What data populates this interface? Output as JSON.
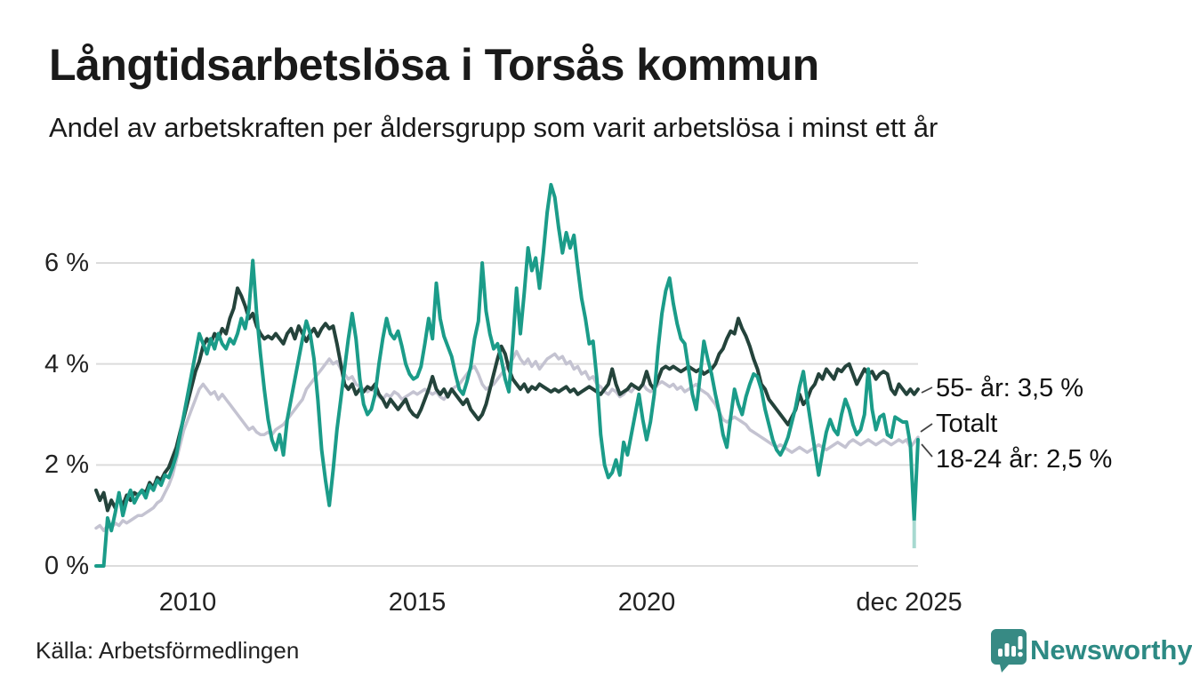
{
  "header": {
    "title": "Långtidsarbetslösa i Torsås kommun",
    "subtitle": "Andel av arbetskraften per åldersgrupp som varit arbetslösa i minst ett år"
  },
  "footer": {
    "source": "Källa: Arbetsförmedlingen",
    "brand": "Newsworthy"
  },
  "colors": {
    "teal": "#1b9c89",
    "dark_green": "#24433b",
    "gray": "#c4c3d1",
    "light_teal_preliminary": "#a7d9d0",
    "gridline": "#dcdcdc",
    "brand_teal": "#378a84"
  },
  "chart_data": {
    "type": "line",
    "title": "Långtidsarbetslösa i Torsås kommun",
    "subtitle": "Andel av arbetskraften per åldersgrupp som varit arbetslösa i minst ett år",
    "x_start": "2008-01",
    "x_end": "2025-12",
    "x_frequency": "monthly",
    "grid": "horizontal",
    "legend_position": "end-of-line-labels",
    "ylim": [
      0,
      7.8
    ],
    "y_ticks": [
      {
        "label": "0 %",
        "value": 0
      },
      {
        "label": "2 %",
        "value": 2
      },
      {
        "label": "4 %",
        "value": 4
      },
      {
        "label": "6 %",
        "value": 6
      }
    ],
    "x_ticks": [
      {
        "label": "2010",
        "month_index": 24
      },
      {
        "label": "2015",
        "month_index": 84
      },
      {
        "label": "2020",
        "month_index": 144
      },
      {
        "label": "dec 2025",
        "month_index": 215
      }
    ],
    "end_labels": [
      "55- år: 3,5 %",
      "Totalt",
      "18-24 år: 2,5 %"
    ],
    "preliminary_tip": {
      "series": "18-24 år",
      "month_index": 214,
      "from": 0.9,
      "to": 0.35,
      "color": "#a7d9d0"
    },
    "series": [
      {
        "name": "Totalt",
        "color": "#c4c3d1",
        "last_value": 2.55,
        "values": [
          0.75,
          0.8,
          0.7,
          0.8,
          0.75,
          0.85,
          0.8,
          0.9,
          0.85,
          0.9,
          0.95,
          1.0,
          1.0,
          1.05,
          1.1,
          1.15,
          1.25,
          1.3,
          1.45,
          1.6,
          1.8,
          2.1,
          2.4,
          2.7,
          2.9,
          3.1,
          3.3,
          3.5,
          3.6,
          3.5,
          3.4,
          3.45,
          3.3,
          3.4,
          3.3,
          3.2,
          3.1,
          3.0,
          2.9,
          2.8,
          2.7,
          2.75,
          2.65,
          2.6,
          2.6,
          2.65,
          2.6,
          2.7,
          2.75,
          2.8,
          2.9,
          3.0,
          3.1,
          3.2,
          3.3,
          3.5,
          3.6,
          3.7,
          3.8,
          3.9,
          4.0,
          4.1,
          4.0,
          4.05,
          3.9,
          3.8,
          3.7,
          3.75,
          3.6,
          3.55,
          3.5,
          3.45,
          3.5,
          3.45,
          3.35,
          3.3,
          3.4,
          3.35,
          3.45,
          3.4,
          3.3,
          3.35,
          3.4,
          3.45,
          3.4,
          3.45,
          3.5,
          3.45,
          3.4,
          3.45,
          3.35,
          3.3,
          3.4,
          3.5,
          3.55,
          3.6,
          3.7,
          3.8,
          3.9,
          3.95,
          3.8,
          3.6,
          3.5,
          3.55,
          3.6,
          3.7,
          3.8,
          3.9,
          4.0,
          4.1,
          4.25,
          4.1,
          4.0,
          4.1,
          3.95,
          4.05,
          3.9,
          4.0,
          4.1,
          4.15,
          4.2,
          4.1,
          4.15,
          4.0,
          4.05,
          3.9,
          3.95,
          3.8,
          3.85,
          3.7,
          3.75,
          3.6,
          3.55,
          3.45,
          3.4,
          3.5,
          3.45,
          3.35,
          3.4,
          3.5,
          3.45,
          3.55,
          3.5,
          3.6,
          3.5,
          3.45,
          3.5,
          3.6,
          3.65,
          3.6,
          3.55,
          3.6,
          3.5,
          3.55,
          3.45,
          3.5,
          3.55,
          3.6,
          3.5,
          3.45,
          3.4,
          3.3,
          3.2,
          3.05,
          2.9,
          2.85,
          2.9,
          2.95,
          2.9,
          2.85,
          2.8,
          2.7,
          2.65,
          2.6,
          2.55,
          2.5,
          2.45,
          2.4,
          2.35,
          2.4,
          2.35,
          2.3,
          2.25,
          2.3,
          2.35,
          2.3,
          2.25,
          2.3,
          2.35,
          2.4,
          2.35,
          2.3,
          2.35,
          2.4,
          2.45,
          2.4,
          2.35,
          2.45,
          2.5,
          2.45,
          2.4,
          2.45,
          2.5,
          2.45,
          2.4,
          2.45,
          2.5,
          2.45,
          2.4,
          2.45,
          2.5,
          2.45,
          2.5,
          2.35,
          2.45,
          2.55
        ]
      },
      {
        "name": "55- år",
        "color": "#24433b",
        "last_value": 3.5,
        "values": [
          1.5,
          1.3,
          1.45,
          1.1,
          1.3,
          1.15,
          1.35,
          1.2,
          1.4,
          1.3,
          1.45,
          1.4,
          1.5,
          1.45,
          1.65,
          1.55,
          1.75,
          1.7,
          1.85,
          1.95,
          2.15,
          2.35,
          2.65,
          2.95,
          3.25,
          3.55,
          3.85,
          4.05,
          4.35,
          4.5,
          4.4,
          4.6,
          4.5,
          4.7,
          4.6,
          4.9,
          5.1,
          5.5,
          5.35,
          5.15,
          4.9,
          5.0,
          4.75,
          4.6,
          4.5,
          4.55,
          4.5,
          4.6,
          4.5,
          4.4,
          4.6,
          4.7,
          4.5,
          4.75,
          4.6,
          4.45,
          4.6,
          4.7,
          4.55,
          4.7,
          4.8,
          4.7,
          4.75,
          4.4,
          4.0,
          3.6,
          3.5,
          3.6,
          3.4,
          3.5,
          3.45,
          3.55,
          3.5,
          3.6,
          3.4,
          3.3,
          3.15,
          3.3,
          3.2,
          3.1,
          3.2,
          3.3,
          3.1,
          3.0,
          2.95,
          3.1,
          3.3,
          3.5,
          3.75,
          3.5,
          3.4,
          3.5,
          3.35,
          3.5,
          3.4,
          3.3,
          3.2,
          3.3,
          3.1,
          3.0,
          2.9,
          3.0,
          3.2,
          3.5,
          3.8,
          4.1,
          4.35,
          4.2,
          3.9,
          3.7,
          3.6,
          3.5,
          3.6,
          3.45,
          3.55,
          3.5,
          3.6,
          3.55,
          3.5,
          3.45,
          3.5,
          3.45,
          3.5,
          3.55,
          3.45,
          3.5,
          3.4,
          3.45,
          3.5,
          3.55,
          3.5,
          3.45,
          3.4,
          3.5,
          3.6,
          3.9,
          3.6,
          3.4,
          3.45,
          3.5,
          3.6,
          3.55,
          3.5,
          3.6,
          3.85,
          3.6,
          3.5,
          3.7,
          3.9,
          3.95,
          3.9,
          3.95,
          3.9,
          3.85,
          3.9,
          3.95,
          3.9,
          3.85,
          3.9,
          3.8,
          3.85,
          3.9,
          4.0,
          4.2,
          4.3,
          4.5,
          4.65,
          4.6,
          4.9,
          4.7,
          4.55,
          4.35,
          4.1,
          3.9,
          3.6,
          3.5,
          3.3,
          3.2,
          3.1,
          3.0,
          2.9,
          2.8,
          2.95,
          3.1,
          3.4,
          3.2,
          3.3,
          3.5,
          3.6,
          3.8,
          3.7,
          3.9,
          3.8,
          3.7,
          3.9,
          3.85,
          3.95,
          4.0,
          3.8,
          3.6,
          3.75,
          3.9,
          3.8,
          3.85,
          3.7,
          3.8,
          3.85,
          3.8,
          3.5,
          3.4,
          3.6,
          3.5,
          3.4,
          3.5,
          3.4,
          3.5
        ]
      },
      {
        "name": "18-24 år",
        "color": "#1b9c89",
        "last_value": 2.5,
        "values": [
          0.0,
          0.0,
          0.0,
          0.95,
          0.7,
          1.05,
          1.45,
          1.0,
          1.3,
          1.5,
          1.25,
          1.4,
          1.5,
          1.35,
          1.6,
          1.5,
          1.7,
          1.6,
          1.8,
          1.75,
          1.95,
          2.2,
          2.6,
          3.0,
          3.4,
          3.8,
          4.2,
          4.6,
          4.4,
          4.2,
          4.5,
          4.3,
          4.6,
          4.4,
          4.3,
          4.5,
          4.4,
          4.6,
          4.9,
          4.7,
          5.1,
          6.05,
          5.0,
          4.2,
          3.5,
          2.9,
          2.5,
          2.3,
          2.6,
          2.2,
          2.9,
          3.3,
          3.7,
          4.1,
          4.5,
          4.85,
          4.6,
          4.1,
          3.3,
          2.3,
          1.7,
          1.2,
          1.9,
          2.7,
          3.3,
          3.9,
          4.5,
          5.0,
          4.5,
          3.7,
          3.2,
          3.0,
          3.1,
          3.4,
          4.0,
          4.5,
          4.9,
          4.6,
          4.5,
          4.65,
          4.35,
          4.0,
          3.8,
          3.7,
          3.75,
          3.95,
          4.4,
          4.9,
          4.5,
          5.6,
          4.9,
          4.55,
          4.35,
          4.15,
          3.8,
          3.5,
          3.4,
          3.65,
          3.95,
          4.5,
          4.85,
          6.0,
          5.05,
          4.6,
          4.3,
          4.4,
          4.1,
          3.7,
          3.45,
          4.4,
          5.5,
          4.6,
          5.4,
          6.3,
          5.85,
          6.1,
          5.5,
          6.2,
          7.0,
          7.55,
          7.3,
          6.7,
          6.2,
          6.6,
          6.3,
          6.55,
          5.9,
          5.3,
          4.9,
          4.4,
          4.45,
          3.7,
          2.6,
          2.0,
          1.75,
          1.85,
          2.1,
          1.8,
          2.45,
          2.2,
          2.6,
          3.0,
          3.4,
          2.9,
          2.5,
          2.85,
          3.4,
          4.3,
          5.0,
          5.45,
          5.7,
          5.2,
          4.8,
          4.5,
          4.4,
          3.9,
          3.4,
          3.1,
          3.75,
          4.45,
          4.1,
          3.8,
          3.4,
          3.05,
          2.6,
          2.35,
          2.95,
          3.5,
          3.2,
          3.0,
          3.35,
          3.6,
          3.8,
          3.75,
          3.5,
          3.1,
          2.8,
          2.5,
          2.3,
          2.2,
          2.35,
          2.55,
          2.85,
          3.15,
          3.55,
          3.85,
          3.3,
          2.8,
          2.3,
          1.8,
          2.25,
          2.65,
          2.9,
          2.7,
          2.6,
          3.0,
          3.3,
          3.1,
          2.8,
          2.6,
          2.7,
          3.0,
          3.9,
          3.1,
          2.7,
          2.95,
          3.0,
          2.6,
          2.55,
          2.95,
          2.9,
          2.85,
          2.85,
          2.4,
          0.9,
          2.5
        ]
      }
    ]
  }
}
